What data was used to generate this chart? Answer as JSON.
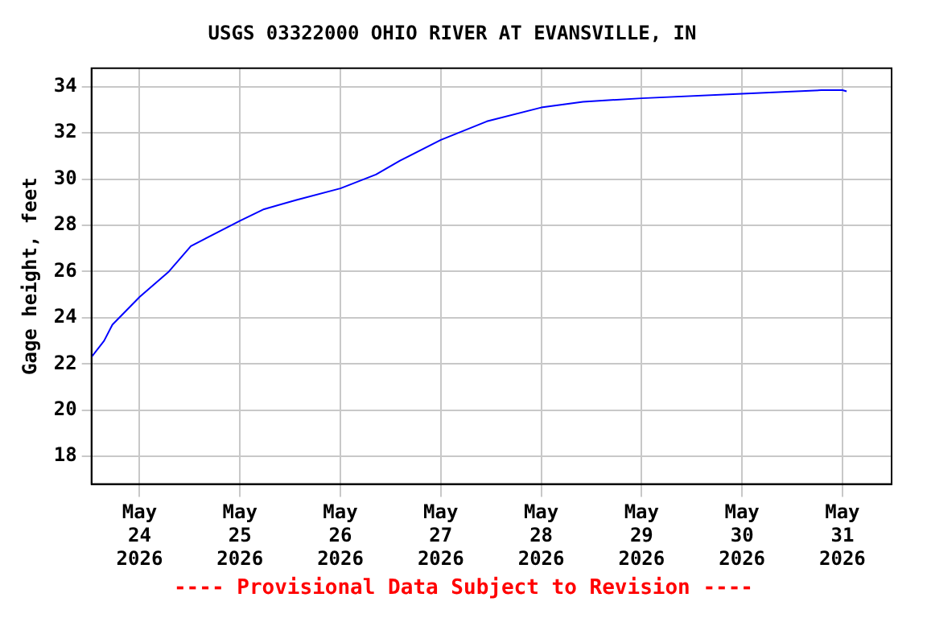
{
  "chart_data": {
    "type": "line",
    "title": "USGS 03322000 OHIO RIVER AT EVANSVILLE, IN",
    "ylabel": "Gage height, feet",
    "x": [
      "2026-05-23T12:30",
      "2026-05-23T15:30",
      "2026-05-23T17:30",
      "2026-05-24T00:00",
      "2026-05-24T07:00",
      "2026-05-24T12:15",
      "2026-05-25T00:00",
      "2026-05-25T05:45",
      "2026-05-25T13:30",
      "2026-05-26T00:00",
      "2026-05-26T08:30",
      "2026-05-26T14:15",
      "2026-05-27T00:00",
      "2026-05-27T11:00",
      "2026-05-28T00:00",
      "2026-05-28T10:00",
      "2026-05-29T00:00",
      "2026-05-30T00:00",
      "2026-05-30T19:00",
      "2026-05-31T00:00",
      "2026-05-31T01:00"
    ],
    "series": [
      {
        "color": "#0000ff",
        "values": [
          22.3,
          23.0,
          23.7,
          24.9,
          26.0,
          27.1,
          28.2,
          28.7,
          29.1,
          29.6,
          30.2,
          30.8,
          31.7,
          32.5,
          33.1,
          33.35,
          33.5,
          33.7,
          33.85,
          33.85,
          33.8
        ]
      }
    ],
    "xlim": [
      "2026-05-23T12:30",
      "2026-05-31T11:45"
    ],
    "xticks": [
      {
        "value": "2026-05-24",
        "label": "May 24 2026"
      },
      {
        "value": "2026-05-25",
        "label": "May 25 2026"
      },
      {
        "value": "2026-05-26",
        "label": "May 26 2026"
      },
      {
        "value": "2026-05-27",
        "label": "May 27 2026"
      },
      {
        "value": "2026-05-28",
        "label": "May 28 2026"
      },
      {
        "value": "2026-05-29",
        "label": "May 29 2026"
      },
      {
        "value": "2026-05-30",
        "label": "May 30 2026"
      },
      {
        "value": "2026-05-31",
        "label": "May 31 2026"
      }
    ],
    "ylim": [
      16.8,
      34.8
    ],
    "yticks": [
      18,
      20,
      22,
      24,
      26,
      28,
      30,
      32,
      34
    ],
    "grid": true,
    "legend": false,
    "marker": "none",
    "line_style": "solid",
    "annotations": [
      "---- Provisional Data Subject to Revision ----"
    ]
  }
}
